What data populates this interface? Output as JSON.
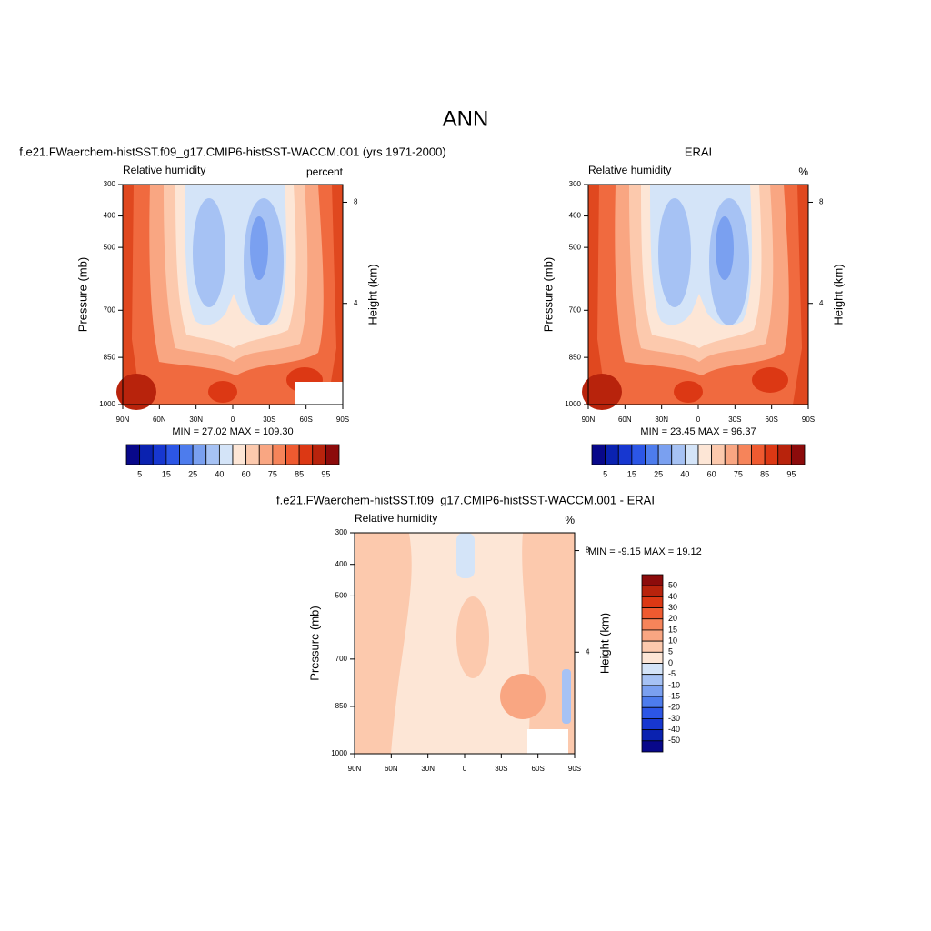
{
  "title": "ANN",
  "chart_data": [
    {
      "type": "contour",
      "title": "f.e21.FWaerchem-histSST.f09_g17.CMIP6-histSST-WACCM.001 (yrs 1971-2000)",
      "left_label": "Relative humidity",
      "right_label": "percent",
      "ylabel": "Pressure (mb)",
      "y2label": "Height (km)",
      "stats": "MIN =  27.02  MAX = 109.30",
      "xlim": [
        90,
        -90
      ],
      "xticks": [
        {
          "value": 90,
          "label": "90N"
        },
        {
          "value": 60,
          "label": "60N"
        },
        {
          "value": 30,
          "label": "30N"
        },
        0,
        {
          "value": -30,
          "label": "30S"
        },
        {
          "value": -60,
          "label": "60S"
        },
        {
          "value": -90,
          "label": "90S"
        }
      ],
      "ylim": [
        300,
        1000
      ],
      "yticks": [
        300,
        400,
        500,
        700,
        850,
        1000
      ],
      "y2lim": [
        0,
        8.7
      ],
      "y2ticks": [
        4,
        8
      ],
      "colorbar": {
        "orientation": "horizontal",
        "labels": [
          "5",
          "15",
          "25",
          "40",
          "60",
          "75",
          "85",
          "95"
        ],
        "colors": [
          "#08088a",
          "#0a22b0",
          "#1737d0",
          "#2c56e6",
          "#4d7ced",
          "#7aa0f0",
          "#a6c2f4",
          "#d4e4f8",
          "#fde6d6",
          "#fcc9ad",
          "#f9a682",
          "#f6845a",
          "#ef5a30",
          "#dc3814",
          "#b8230c",
          "#8c0b0b"
        ]
      }
    },
    {
      "type": "contour",
      "title": "ERAI",
      "left_label": "Relative humidity",
      "right_label": "%",
      "ylabel": "Pressure (mb)",
      "y2label": "Height (km)",
      "stats": "MIN =  23.45  MAX =  96.37",
      "xlim": [
        90,
        -90
      ],
      "xticks": [
        {
          "value": 90,
          "label": "90N"
        },
        {
          "value": 60,
          "label": "60N"
        },
        {
          "value": 30,
          "label": "30N"
        },
        0,
        {
          "value": -30,
          "label": "30S"
        },
        {
          "value": -60,
          "label": "60S"
        },
        {
          "value": -90,
          "label": "90S"
        }
      ],
      "ylim": [
        300,
        1000
      ],
      "yticks": [
        300,
        400,
        500,
        700,
        850,
        1000
      ],
      "y2lim": [
        0,
        8.7
      ],
      "y2ticks": [
        4,
        8
      ],
      "colorbar": {
        "orientation": "horizontal",
        "labels": [
          "5",
          "15",
          "25",
          "40",
          "60",
          "75",
          "85",
          "95"
        ],
        "colors": [
          "#08088a",
          "#0a22b0",
          "#1737d0",
          "#2c56e6",
          "#4d7ced",
          "#7aa0f0",
          "#a6c2f4",
          "#d4e4f8",
          "#fde6d6",
          "#fcc9ad",
          "#f9a682",
          "#f6845a",
          "#ef5a30",
          "#dc3814",
          "#b8230c",
          "#8c0b0b"
        ]
      }
    },
    {
      "type": "contour",
      "title": "f.e21.FWaerchem-histSST.f09_g17.CMIP6-histSST-WACCM.001 - ERAI",
      "left_label": "Relative humidity",
      "right_label": "%",
      "ylabel": "Pressure (mb)",
      "y2label": "Height (km)",
      "stats": "MIN =  -9.15  MAX =  19.12",
      "xlim": [
        90,
        -90
      ],
      "xticks": [
        {
          "value": 90,
          "label": "90N"
        },
        {
          "value": 60,
          "label": "60N"
        },
        {
          "value": 30,
          "label": "30N"
        },
        0,
        {
          "value": -30,
          "label": "30S"
        },
        {
          "value": -60,
          "label": "60S"
        },
        {
          "value": -90,
          "label": "90S"
        }
      ],
      "ylim": [
        300,
        1000
      ],
      "yticks": [
        300,
        400,
        500,
        700,
        850,
        1000
      ],
      "y2lim": [
        0,
        8.7
      ],
      "y2ticks": [
        4,
        8
      ],
      "colorbar": {
        "orientation": "vertical",
        "labels": [
          "50",
          "40",
          "30",
          "20",
          "15",
          "10",
          "5",
          "0",
          "-5",
          "-10",
          "-15",
          "-20",
          "-30",
          "-40",
          "-50"
        ],
        "colors": [
          "#8c0b0b",
          "#b8230c",
          "#dc3814",
          "#ef5a30",
          "#f6845a",
          "#f9a682",
          "#fcc9ad",
          "#fde6d6",
          "#d4e4f8",
          "#a6c2f4",
          "#7aa0f0",
          "#4d7ced",
          "#2c56e6",
          "#1737d0",
          "#0a22b0",
          "#08088a"
        ]
      }
    }
  ]
}
